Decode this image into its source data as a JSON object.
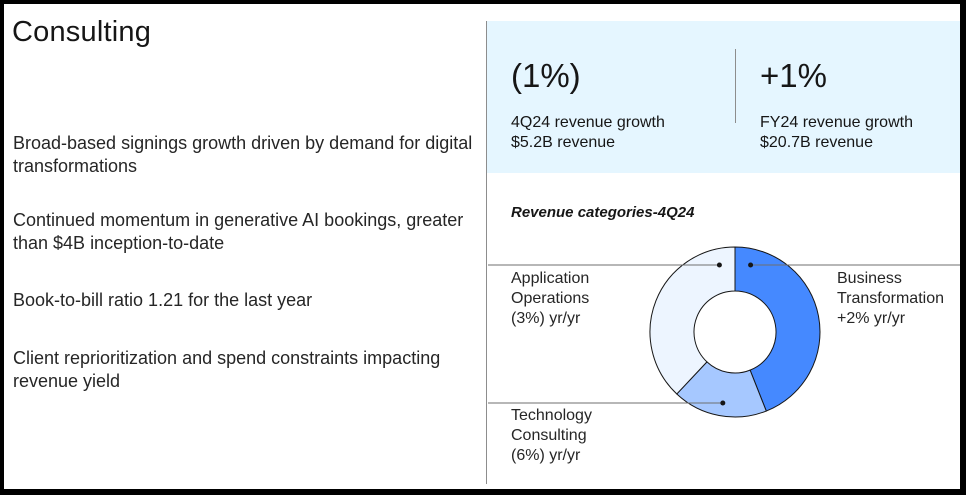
{
  "title": "Consulting",
  "bullets": [
    "Broad-based signings growth driven by demand for digital transformations",
    "Continued momentum in generative AI bookings, greater than $4B inception-to-date",
    "Book-to-bill ratio 1.21 for the last year",
    "Client reprioritization and spend constraints impacting revenue yield"
  ],
  "kpis": [
    {
      "value": "(1%)",
      "line1": "4Q24 revenue growth",
      "line2": "$5.2B revenue"
    },
    {
      "value": "+1%",
      "line1": "FY24 revenue growth",
      "line2": "$20.7B revenue"
    }
  ],
  "chart_title": "Revenue categories-4Q24",
  "chart_data": {
    "type": "pie",
    "title": "Revenue categories-4Q24",
    "donut": true,
    "categories": [
      "Business Transformation",
      "Technology Consulting",
      "Application Operations"
    ],
    "values": [
      44,
      18,
      38
    ],
    "labels": [
      [
        "Business",
        "Transformation",
        "+2% yr/yr"
      ],
      [
        "Technology",
        "Consulting",
        "(6%) yr/yr"
      ],
      [
        "Application",
        "Operations",
        "(3%) yr/yr"
      ]
    ],
    "colors": [
      "#4589ff",
      "#a6c8ff",
      "#edf5ff"
    ]
  }
}
